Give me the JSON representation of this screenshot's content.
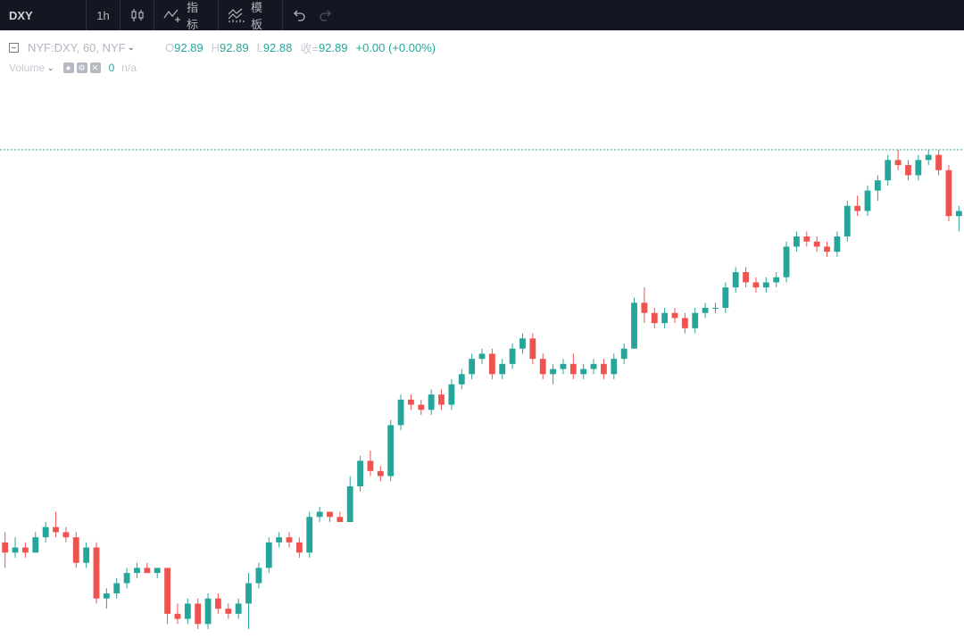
{
  "toolbar": {
    "symbol": "DXY",
    "interval": "1h",
    "indicators_label": "指标",
    "templates_label": "模板",
    "icons": [
      "candlestick-icon",
      "indicators-icon",
      "templates-icon",
      "undo-icon",
      "redo-icon"
    ]
  },
  "legend": {
    "title": "NYF:DXY, 60, NYF",
    "open_label": "O",
    "open": "92.89",
    "high_label": "H",
    "high": "92.89",
    "low_label": "L",
    "low": "92.88",
    "close_label": "收=",
    "close": "92.89",
    "change": "+0.00 (+0.00%)"
  },
  "volume": {
    "label": "Volume",
    "value": "0",
    "na": "n/a"
  },
  "colors": {
    "up": "#26a69a",
    "down": "#ef5350",
    "background": "#ffffff",
    "toolbar": "#131722"
  },
  "chart_data": {
    "type": "candlestick",
    "symbol": "DXY",
    "interval": "1h",
    "price_range": [
      91.95,
      93.0
    ],
    "reference_price": 92.89,
    "candles": [
      [
        92.12,
        92.14,
        92.07,
        92.1
      ],
      [
        92.1,
        92.13,
        92.09,
        92.11
      ],
      [
        92.11,
        92.12,
        92.09,
        92.1
      ],
      [
        92.1,
        92.14,
        92.1,
        92.13
      ],
      [
        92.13,
        92.16,
        92.12,
        92.15
      ],
      [
        92.15,
        92.18,
        92.13,
        92.14
      ],
      [
        92.14,
        92.15,
        92.12,
        92.13
      ],
      [
        92.13,
        92.14,
        92.07,
        92.08
      ],
      [
        92.08,
        92.12,
        92.07,
        92.11
      ],
      [
        92.11,
        92.12,
        92.0,
        92.01
      ],
      [
        92.01,
        92.03,
        91.99,
        92.02
      ],
      [
        92.02,
        92.05,
        92.01,
        92.04
      ],
      [
        92.04,
        92.07,
        92.03,
        92.06
      ],
      [
        92.06,
        92.08,
        92.05,
        92.07
      ],
      [
        92.07,
        92.08,
        92.06,
        92.06
      ],
      [
        92.06,
        92.07,
        92.05,
        92.07
      ],
      [
        92.07,
        92.07,
        91.96,
        91.98
      ],
      [
        91.98,
        92.0,
        91.96,
        91.97
      ],
      [
        91.97,
        92.01,
        91.96,
        92.0
      ],
      [
        92.0,
        92.01,
        91.95,
        91.96
      ],
      [
        91.96,
        92.02,
        91.95,
        92.01
      ],
      [
        92.01,
        92.02,
        91.98,
        91.99
      ],
      [
        91.99,
        92.0,
        91.97,
        91.98
      ],
      [
        91.98,
        92.01,
        91.97,
        92.0
      ],
      [
        92.0,
        92.06,
        91.95,
        92.04
      ],
      [
        92.04,
        92.08,
        92.03,
        92.07
      ],
      [
        92.07,
        92.13,
        92.06,
        92.12
      ],
      [
        92.12,
        92.14,
        92.11,
        92.13
      ],
      [
        92.13,
        92.14,
        92.11,
        92.12
      ],
      [
        92.12,
        92.13,
        92.09,
        92.1
      ],
      [
        92.1,
        92.18,
        92.09,
        92.17
      ],
      [
        92.17,
        92.19,
        92.16,
        92.18
      ],
      [
        92.18,
        92.18,
        92.16,
        92.17
      ],
      [
        92.17,
        92.18,
        92.16,
        92.16
      ],
      [
        92.16,
        92.25,
        92.16,
        92.23
      ],
      [
        92.23,
        92.29,
        92.22,
        92.28
      ],
      [
        92.28,
        92.3,
        92.25,
        92.26
      ],
      [
        92.26,
        92.27,
        92.24,
        92.25
      ],
      [
        92.25,
        92.36,
        92.24,
        92.35
      ],
      [
        92.35,
        92.41,
        92.34,
        92.4
      ],
      [
        92.4,
        92.41,
        92.38,
        92.39
      ],
      [
        92.39,
        92.4,
        92.37,
        92.38
      ],
      [
        92.38,
        92.42,
        92.37,
        92.41
      ],
      [
        92.41,
        92.42,
        92.38,
        92.39
      ],
      [
        92.39,
        92.44,
        92.38,
        92.43
      ],
      [
        92.43,
        92.46,
        92.42,
        92.45
      ],
      [
        92.45,
        92.49,
        92.44,
        92.48
      ],
      [
        92.48,
        92.5,
        92.47,
        92.49
      ],
      [
        92.49,
        92.5,
        92.44,
        92.45
      ],
      [
        92.45,
        92.48,
        92.44,
        92.47
      ],
      [
        92.47,
        92.51,
        92.46,
        92.5
      ],
      [
        92.5,
        92.53,
        92.49,
        92.52
      ],
      [
        92.52,
        92.53,
        92.47,
        92.48
      ],
      [
        92.48,
        92.49,
        92.44,
        92.45
      ],
      [
        92.45,
        92.47,
        92.43,
        92.46
      ],
      [
        92.46,
        92.48,
        92.45,
        92.47
      ],
      [
        92.47,
        92.49,
        92.44,
        92.45
      ],
      [
        92.45,
        92.47,
        92.44,
        92.46
      ],
      [
        92.46,
        92.48,
        92.45,
        92.47
      ],
      [
        92.47,
        92.48,
        92.44,
        92.45
      ],
      [
        92.45,
        92.49,
        92.44,
        92.48
      ],
      [
        92.48,
        92.51,
        92.47,
        92.5
      ],
      [
        92.5,
        92.6,
        92.5,
        92.59
      ],
      [
        92.59,
        92.62,
        92.55,
        92.57
      ],
      [
        92.57,
        92.58,
        92.54,
        92.55
      ],
      [
        92.55,
        92.58,
        92.54,
        92.57
      ],
      [
        92.57,
        92.58,
        92.55,
        92.56
      ],
      [
        92.56,
        92.57,
        92.53,
        92.54
      ],
      [
        92.54,
        92.58,
        92.53,
        92.57
      ],
      [
        92.57,
        92.59,
        92.56,
        92.58
      ],
      [
        92.58,
        92.59,
        92.57,
        92.58
      ],
      [
        92.58,
        92.63,
        92.57,
        92.62
      ],
      [
        92.62,
        92.66,
        92.61,
        92.65
      ],
      [
        92.65,
        92.66,
        92.62,
        92.63
      ],
      [
        92.63,
        92.64,
        92.61,
        92.62
      ],
      [
        92.62,
        92.64,
        92.61,
        92.63
      ],
      [
        92.63,
        92.65,
        92.62,
        92.64
      ],
      [
        92.64,
        92.71,
        92.63,
        92.7
      ],
      [
        92.7,
        92.73,
        92.69,
        92.72
      ],
      [
        92.72,
        92.73,
        92.7,
        92.71
      ],
      [
        92.71,
        92.72,
        92.69,
        92.7
      ],
      [
        92.7,
        92.71,
        92.68,
        92.69
      ],
      [
        92.69,
        92.73,
        92.68,
        92.72
      ],
      [
        92.72,
        92.79,
        92.71,
        92.78
      ],
      [
        92.78,
        92.8,
        92.76,
        92.77
      ],
      [
        92.77,
        92.82,
        92.76,
        92.81
      ],
      [
        92.81,
        92.84,
        92.79,
        92.83
      ],
      [
        92.83,
        92.88,
        92.82,
        92.87
      ],
      [
        92.87,
        92.89,
        92.85,
        92.86
      ],
      [
        92.86,
        92.87,
        92.83,
        92.84
      ],
      [
        92.84,
        92.88,
        92.83,
        92.87
      ],
      [
        92.87,
        92.89,
        92.86,
        92.88
      ],
      [
        92.88,
        92.89,
        92.84,
        92.85
      ],
      [
        92.85,
        92.86,
        92.75,
        92.76
      ],
      [
        92.76,
        92.78,
        92.73,
        92.77
      ]
    ]
  }
}
